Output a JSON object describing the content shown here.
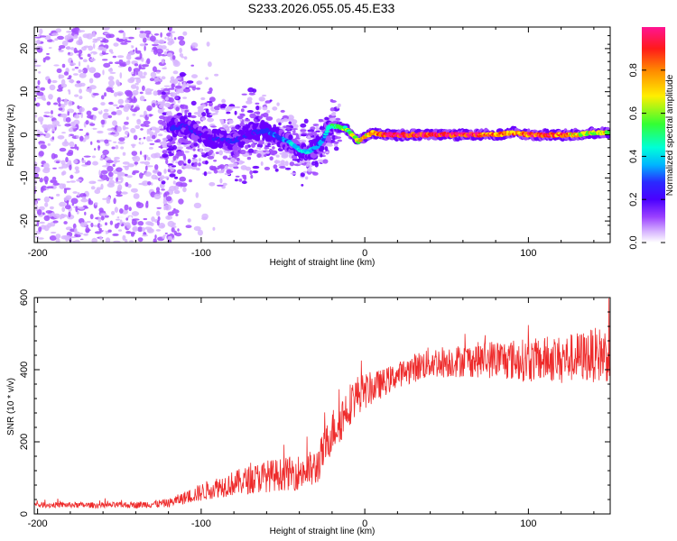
{
  "title": "S233.2026.055.05.45.E33",
  "colors": {
    "snr_line": "#ee2b2b",
    "spectrum_palette": [
      "#ffffff",
      "#d8b6ff",
      "#a24cff",
      "#6a00ff",
      "#2a2aff",
      "#00b4ff",
      "#00ffd8",
      "#33ff33",
      "#ffee00",
      "#ff8800",
      "#ff1a1a",
      "#ff1493"
    ]
  },
  "chart_data": [
    {
      "type": "heatmap",
      "name": "spectrogram",
      "xlabel": "Height of straight line (km)",
      "ylabel": "Frequency (Hz)",
      "xlim": [
        -202,
        150
      ],
      "ylim": [
        -25,
        25
      ],
      "xticks": [
        -200,
        -100,
        0,
        100
      ],
      "yticks": [
        -20,
        -10,
        0,
        10,
        20
      ],
      "grid": false,
      "description_of_trace": "noise for x<-120, scattered energy -120..-20, dominant narrowband line near 0 Hz from -20 to 150 km",
      "trace": {
        "x": [
          -120,
          -110,
          -100,
          -90,
          -80,
          -70,
          -60,
          -50,
          -45,
          -40,
          -35,
          -30,
          -25,
          -22,
          -18,
          -12,
          -8,
          -4,
          0,
          5,
          10,
          20,
          40,
          60,
          80,
          90,
          100,
          110,
          120,
          130,
          140,
          150
        ],
        "freq": [
          1.5,
          2,
          0,
          -1,
          -1.5,
          0.5,
          1,
          -1,
          -2,
          -3.5,
          -4,
          -3,
          -1,
          2,
          2,
          1.5,
          0,
          -1.5,
          -0.5,
          0.5,
          0,
          0,
          0,
          0,
          0,
          0.5,
          0,
          0,
          0,
          0,
          0.5,
          0.5
        ],
        "amplitude": [
          0.35,
          0.3,
          0.3,
          0.3,
          0.35,
          0.3,
          0.35,
          0.4,
          0.45,
          0.5,
          0.5,
          0.45,
          0.4,
          0.55,
          0.6,
          0.65,
          0.7,
          0.7,
          0.75,
          0.8,
          0.9,
          0.95,
          0.95,
          0.95,
          0.85,
          0.8,
          0.85,
          0.9,
          0.9,
          0.7,
          0.7,
          0.7
        ]
      },
      "colorbar": {
        "label": "Normalized spectral amplitude",
        "range": [
          0.0,
          1.0
        ],
        "ticks": [
          0.0,
          0.2,
          0.4,
          0.6,
          0.8
        ]
      }
    },
    {
      "type": "line",
      "name": "snr",
      "xlabel": "Height of straight line (km)",
      "ylabel": "SNR (10 * v/v)",
      "xlim": [
        -202,
        150
      ],
      "ylim": [
        0,
        600
      ],
      "xticks": [
        -200,
        -100,
        0,
        100
      ],
      "yticks": [
        0,
        200,
        400,
        600
      ],
      "grid": false,
      "series": [
        {
          "name": "SNR",
          "x": [
            -202,
            -180,
            -160,
            -140,
            -120,
            -110,
            -100,
            -90,
            -80,
            -70,
            -60,
            -50,
            -40,
            -30,
            -25,
            -20,
            -15,
            -10,
            -5,
            0,
            10,
            20,
            30,
            40,
            60,
            80,
            100,
            120,
            140,
            150
          ],
          "values": [
            25,
            25,
            24,
            25,
            30,
            45,
            60,
            75,
            85,
            95,
            105,
            110,
            115,
            125,
            175,
            230,
            260,
            300,
            330,
            340,
            360,
            385,
            405,
            420,
            425,
            430,
            425,
            430,
            440,
            445
          ],
          "noise_amplitude": [
            8,
            8,
            8,
            9,
            12,
            18,
            25,
            30,
            35,
            40,
            45,
            45,
            50,
            55,
            55,
            60,
            65,
            60,
            55,
            50,
            40,
            35,
            40,
            45,
            45,
            55,
            60,
            65,
            75,
            80
          ]
        }
      ]
    }
  ]
}
